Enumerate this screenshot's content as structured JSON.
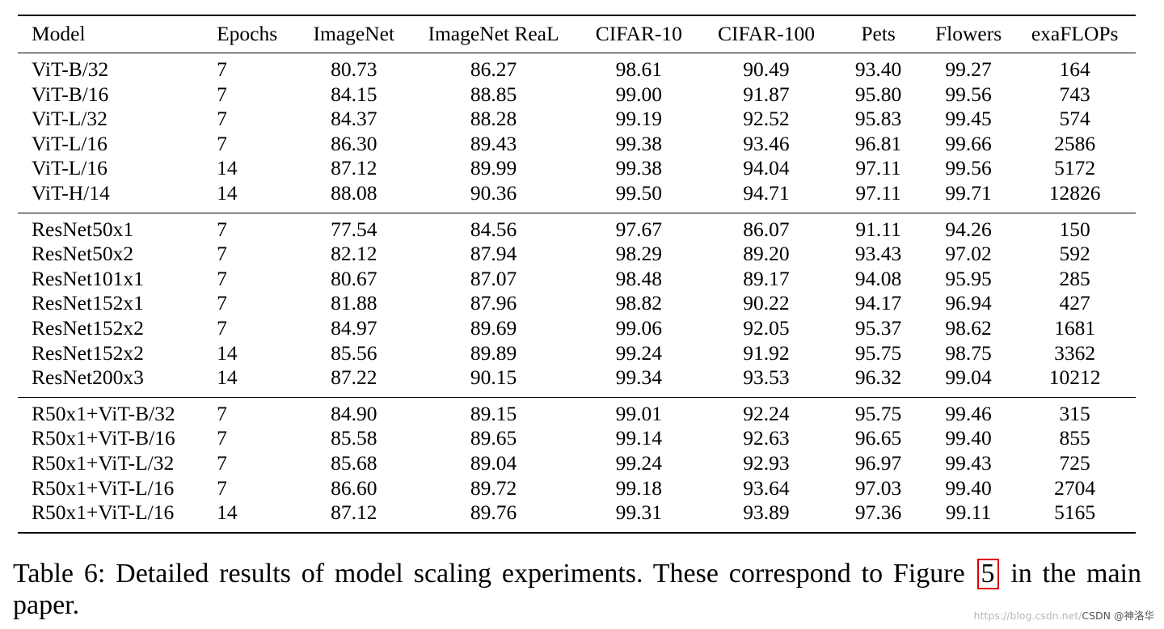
{
  "table": {
    "headers": [
      "Model",
      "Epochs",
      "ImageNet",
      "ImageNet ReaL",
      "CIFAR-10",
      "CIFAR-100",
      "Pets",
      "Flowers",
      "exaFLOPs"
    ],
    "groups": [
      [
        [
          "ViT-B/32",
          "7",
          "80.73",
          "86.27",
          "98.61",
          "90.49",
          "93.40",
          "99.27",
          "164"
        ],
        [
          "ViT-B/16",
          "7",
          "84.15",
          "88.85",
          "99.00",
          "91.87",
          "95.80",
          "99.56",
          "743"
        ],
        [
          "ViT-L/32",
          "7",
          "84.37",
          "88.28",
          "99.19",
          "92.52",
          "95.83",
          "99.45",
          "574"
        ],
        [
          "ViT-L/16",
          "7",
          "86.30",
          "89.43",
          "99.38",
          "93.46",
          "96.81",
          "99.66",
          "2586"
        ],
        [
          "ViT-L/16",
          "14",
          "87.12",
          "89.99",
          "99.38",
          "94.04",
          "97.11",
          "99.56",
          "5172"
        ],
        [
          "ViT-H/14",
          "14",
          "88.08",
          "90.36",
          "99.50",
          "94.71",
          "97.11",
          "99.71",
          "12826"
        ]
      ],
      [
        [
          "ResNet50x1",
          "7",
          "77.54",
          "84.56",
          "97.67",
          "86.07",
          "91.11",
          "94.26",
          "150"
        ],
        [
          "ResNet50x2",
          "7",
          "82.12",
          "87.94",
          "98.29",
          "89.20",
          "93.43",
          "97.02",
          "592"
        ],
        [
          "ResNet101x1",
          "7",
          "80.67",
          "87.07",
          "98.48",
          "89.17",
          "94.08",
          "95.95",
          "285"
        ],
        [
          "ResNet152x1",
          "7",
          "81.88",
          "87.96",
          "98.82",
          "90.22",
          "94.17",
          "96.94",
          "427"
        ],
        [
          "ResNet152x2",
          "7",
          "84.97",
          "89.69",
          "99.06",
          "92.05",
          "95.37",
          "98.62",
          "1681"
        ],
        [
          "ResNet152x2",
          "14",
          "85.56",
          "89.89",
          "99.24",
          "91.92",
          "95.75",
          "98.75",
          "3362"
        ],
        [
          "ResNet200x3",
          "14",
          "87.22",
          "90.15",
          "99.34",
          "93.53",
          "96.32",
          "99.04",
          "10212"
        ]
      ],
      [
        [
          "R50x1+ViT-B/32",
          "7",
          "84.90",
          "89.15",
          "99.01",
          "92.24",
          "95.75",
          "99.46",
          "315"
        ],
        [
          "R50x1+ViT-B/16",
          "7",
          "85.58",
          "89.65",
          "99.14",
          "92.63",
          "96.65",
          "99.40",
          "855"
        ],
        [
          "R50x1+ViT-L/32",
          "7",
          "85.68",
          "89.04",
          "99.24",
          "92.93",
          "96.97",
          "99.43",
          "725"
        ],
        [
          "R50x1+ViT-L/16",
          "7",
          "86.60",
          "89.72",
          "99.18",
          "93.64",
          "97.03",
          "99.40",
          "2704"
        ],
        [
          "R50x1+ViT-L/16",
          "14",
          "87.12",
          "89.76",
          "99.31",
          "93.89",
          "97.36",
          "99.11",
          "5165"
        ]
      ]
    ]
  },
  "caption": {
    "before": "Table 6: Detailed results of model scaling experiments. These correspond to Figure ",
    "figure_ref": "5",
    "after": " in the main paper."
  },
  "watermark": {
    "url": "https://blog.csdn.net/",
    "brand": "CSDN @神洛华"
  },
  "colors": {
    "figure_ref_border": "#e00000",
    "watermark_text": "#b8b8b8"
  }
}
